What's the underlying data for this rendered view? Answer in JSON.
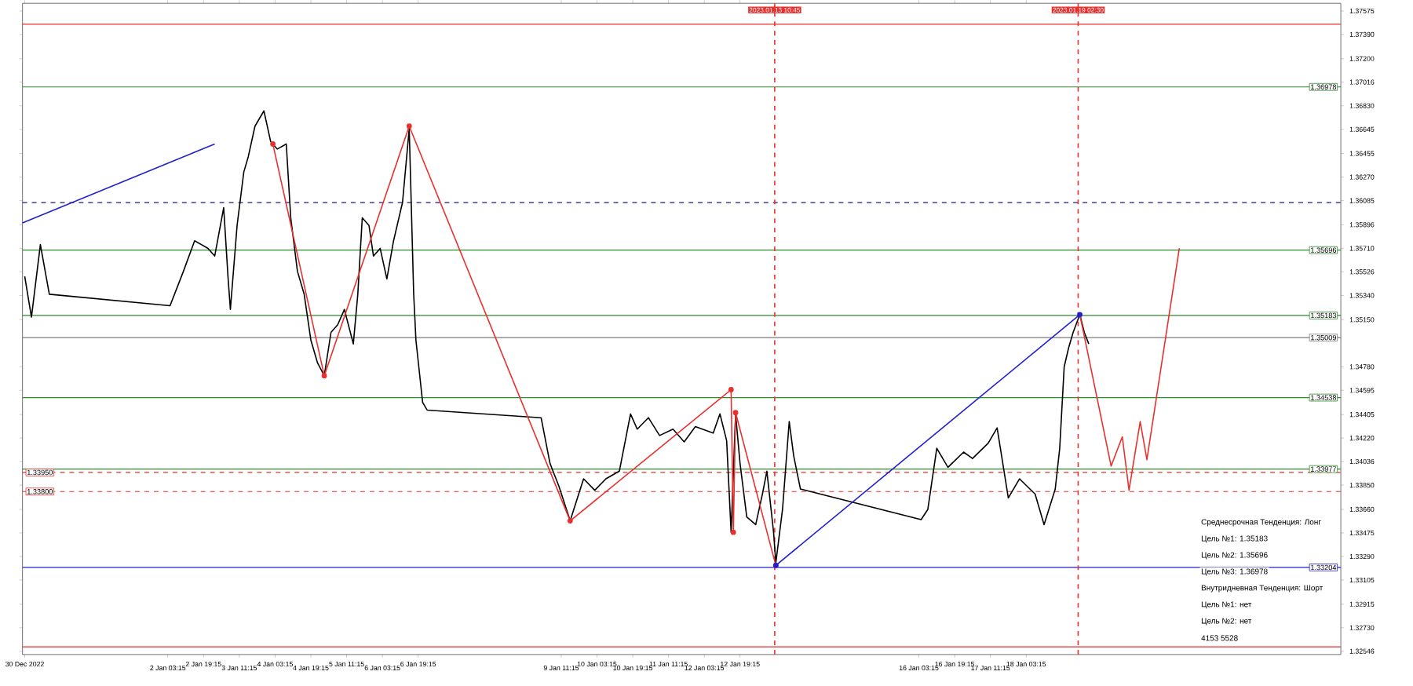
{
  "chart_data": {
    "type": "line",
    "grid": false,
    "marker": "none",
    "line_style": "solid",
    "xlim": [
      "2022-12-30T10:15",
      "2023-01-24T00:00"
    ],
    "ylim": [
      1.3252,
      1.37635
    ],
    "xticks": [
      {
        "value": "2022-12-30T11:15",
        "label": "30 Dec 2022"
      },
      {
        "value": "2023-01-02T03:15",
        "label": "2 Jan 03:15"
      },
      {
        "value": "2023-01-02T19:15",
        "label": "2 Jan 19:15"
      },
      {
        "value": "2023-01-03T11:15",
        "label": "3 Jan 11:15"
      },
      {
        "value": "2023-01-04T03:15",
        "label": "4 Jan 03:15"
      },
      {
        "value": "2023-01-04T19:15",
        "label": "4 Jan 19:15"
      },
      {
        "value": "2023-01-05T11:15",
        "label": "5 Jan 11:15"
      },
      {
        "value": "2023-01-06T03:15",
        "label": "6 Jan 03:15"
      },
      {
        "value": "2023-01-06T19:15",
        "label": "6 Jan 19:15"
      },
      {
        "value": "2023-01-09T11:15",
        "label": "9 Jan 11:15"
      },
      {
        "value": "2023-01-10T03:15",
        "label": "10 Jan 03:15"
      },
      {
        "value": "2023-01-10T19:15",
        "label": "10 Jan 19:15"
      },
      {
        "value": "2023-01-11T11:15",
        "label": "11 Jan 11:15"
      },
      {
        "value": "2023-01-12T03:15",
        "label": "12 Jan 03:15"
      },
      {
        "value": "2023-01-12T19:15",
        "label": "12 Jan 19:15"
      },
      {
        "value": "2023-01-16T03:15",
        "label": "16 Jan 03:15"
      },
      {
        "value": "2023-01-16T19:15",
        "label": "16 Jan 19:15"
      },
      {
        "value": "2023-01-17T11:15",
        "label": "17 Jan 11:15"
      },
      {
        "value": "2023-01-18T03:15",
        "label": "18 Jan 03:15"
      }
    ],
    "yticks": [
      {
        "value": 1.37575,
        "label": "1.37575"
      },
      {
        "value": 1.3739,
        "label": "1.37390"
      },
      {
        "value": 1.372,
        "label": "1.37200"
      },
      {
        "value": 1.37016,
        "label": "1.37016"
      },
      {
        "value": 1.3683,
        "label": "1.36830"
      },
      {
        "value": 1.36645,
        "label": "1.36645"
      },
      {
        "value": 1.36455,
        "label": "1.36455"
      },
      {
        "value": 1.3627,
        "label": "1.36270"
      },
      {
        "value": 1.36085,
        "label": "1.36085"
      },
      {
        "value": 1.35896,
        "label": "1.35896"
      },
      {
        "value": 1.3571,
        "label": "1.35710"
      },
      {
        "value": 1.35526,
        "label": "1.35526"
      },
      {
        "value": 1.3534,
        "label": "1.35340"
      },
      {
        "value": 1.3515,
        "label": "1.35150"
      },
      {
        "value": 1.3478,
        "label": "1.34780"
      },
      {
        "value": 1.34595,
        "label": "1.34595"
      },
      {
        "value": 1.34405,
        "label": "1.34405"
      },
      {
        "value": 1.3422,
        "label": "1.34220"
      },
      {
        "value": 1.34036,
        "label": "1.34036"
      },
      {
        "value": 1.3385,
        "label": "1.33850"
      },
      {
        "value": 1.3366,
        "label": "1.33660"
      },
      {
        "value": 1.33475,
        "label": "1.33475"
      },
      {
        "value": 1.3329,
        "label": "1.33290"
      },
      {
        "value": 1.33105,
        "label": "1.33105"
      },
      {
        "value": 1.32915,
        "label": "1.32915"
      },
      {
        "value": 1.3273,
        "label": "1.32730"
      },
      {
        "value": 1.32546,
        "label": "1.32546"
      }
    ],
    "series": [
      {
        "color": "#000000",
        "x": [
          "2022-12-30T11:15",
          "2022-12-30T14:15",
          "2022-12-30T18:15",
          "2022-12-30T22:15",
          "2023-01-02T04:15",
          "2023-01-02T10:15",
          "2023-01-02T15:15",
          "2023-01-02T21:15",
          "2023-01-03T00:15",
          "2023-01-03T04:15",
          "2023-01-03T06:15",
          "2023-01-03T07:15",
          "2023-01-03T10:15",
          "2023-01-03T13:15",
          "2023-01-03T15:15",
          "2023-01-03T18:15",
          "2023-01-03T22:15",
          "2023-01-04T01:15",
          "2023-01-04T04:15",
          "2023-01-04T08:15",
          "2023-01-04T10:15",
          "2023-01-04T13:15",
          "2023-01-04T16:15",
          "2023-01-04T19:15",
          "2023-01-04T22:15",
          "2023-01-05T01:15",
          "2023-01-05T04:15",
          "2023-01-05T07:15",
          "2023-01-05T10:15",
          "2023-01-05T14:15",
          "2023-01-05T16:15",
          "2023-01-05T18:15",
          "2023-01-05T21:15",
          "2023-01-05T23:15",
          "2023-01-06T02:15",
          "2023-01-06T05:15",
          "2023-01-06T08:15",
          "2023-01-06T12:15",
          "2023-01-06T15:15",
          "2023-01-06T17:15",
          "2023-01-06T18:15",
          "2023-01-06T21:15",
          "2023-01-06T23:15",
          "2023-01-09T02:15",
          "2023-01-09T06:15",
          "2023-01-09T10:15",
          "2023-01-09T15:15",
          "2023-01-09T21:15",
          "2023-01-10T02:15",
          "2023-01-10T07:15",
          "2023-01-10T13:15",
          "2023-01-10T18:15",
          "2023-01-10T21:15",
          "2023-01-11T02:15",
          "2023-01-11T07:15",
          "2023-01-11T13:15",
          "2023-01-11T18:15",
          "2023-01-11T23:15",
          "2023-01-12T07:15",
          "2023-01-12T10:15",
          "2023-01-12T13:15",
          "2023-01-12T15:15",
          "2023-01-12T17:15",
          "2023-01-12T19:15",
          "2023-01-12T22:15",
          "2023-01-13T02:15",
          "2023-01-13T05:15",
          "2023-01-13T07:15",
          "2023-01-13T10:15",
          "2023-01-13T11:15",
          "2023-01-13T14:15",
          "2023-01-13T17:15",
          "2023-01-13T19:15",
          "2023-01-13T22:15",
          "2023-01-16T04:15",
          "2023-01-16T07:15",
          "2023-01-16T11:15",
          "2023-01-16T16:15",
          "2023-01-16T23:15",
          "2023-01-17T03:15",
          "2023-01-17T10:15",
          "2023-01-17T14:15",
          "2023-01-17T19:15",
          "2023-01-18T00:15",
          "2023-01-18T07:15",
          "2023-01-18T11:15",
          "2023-01-18T16:15",
          "2023-01-18T18:15",
          "2023-01-18T20:15",
          "2023-01-18T22:15",
          "2023-01-19T00:15",
          "2023-01-19T03:15",
          "2023-01-19T05:15",
          "2023-01-19T07:15"
        ],
        "values": [
          1.3549,
          1.3517,
          1.3574,
          1.3535,
          1.3526,
          1.3553,
          1.3577,
          1.3571,
          1.3565,
          1.3603,
          1.3547,
          1.3523,
          1.3589,
          1.3631,
          1.3643,
          1.3667,
          1.3679,
          1.3655,
          1.3649,
          1.3653,
          1.3595,
          1.3553,
          1.3535,
          1.3499,
          1.3481,
          1.3471,
          1.3505,
          1.3511,
          1.3523,
          1.3496,
          1.3535,
          1.3595,
          1.3589,
          1.3565,
          1.3571,
          1.3547,
          1.3577,
          1.3607,
          1.3665,
          1.3535,
          1.3499,
          1.345,
          1.3444,
          1.3438,
          1.3402,
          1.3384,
          1.3357,
          1.339,
          1.3381,
          1.339,
          1.3396,
          1.3441,
          1.3429,
          1.3438,
          1.3424,
          1.3429,
          1.3419,
          1.3431,
          1.3426,
          1.3441,
          1.342,
          1.3348,
          1.3441,
          1.3402,
          1.336,
          1.3354,
          1.3378,
          1.3396,
          1.3348,
          1.3324,
          1.3366,
          1.3435,
          1.3408,
          1.3382,
          1.3358,
          1.3366,
          1.3414,
          1.3399,
          1.3411,
          1.3406,
          1.3418,
          1.343,
          1.3375,
          1.339,
          1.3378,
          1.3354,
          1.3382,
          1.3414,
          1.3478,
          1.3493,
          1.3505,
          1.3519,
          1.3505,
          1.3496
        ]
      },
      {
        "color": "#e8312f",
        "marker": "circle",
        "x": [
          "2023-01-04T02:15",
          "2023-01-05T01:15",
          "2023-01-06T15:15",
          "2023-01-09T15:15",
          "2023-01-12T15:15",
          "2023-01-12T16:15",
          "2023-01-12T17:15",
          "2023-01-13T11:15"
        ],
        "values": [
          1.3653,
          1.3471,
          1.3667,
          1.3357,
          1.346,
          1.3348,
          1.3442,
          1.3322
        ]
      },
      {
        "color": "#2020d0",
        "marker": "circle",
        "x": [
          "2023-01-13T11:15",
          "2023-01-19T03:15"
        ],
        "values": [
          1.3322,
          1.3519
        ]
      },
      {
        "color": "#2020d0",
        "x": [
          "2022-12-30T10:15",
          "2023-01-03T00:15"
        ],
        "values": [
          1.3591,
          1.3653
        ]
      },
      {
        "color": "#e8312f",
        "x": [
          "2023-01-19T03:15",
          "2023-01-19T17:15",
          "2023-01-19T22:15",
          "2023-01-20T01:15",
          "2023-01-20T06:15",
          "2023-01-20T09:15",
          "2023-01-20T23:45"
        ],
        "values": [
          1.3519,
          1.34,
          1.3423,
          1.3381,
          1.3435,
          1.3405,
          1.3571
        ]
      }
    ],
    "ref_lines": [
      {
        "axis": "y",
        "value": 1.3747,
        "color": "#e8312f"
      },
      {
        "axis": "y",
        "value": 1.3607,
        "color": "#1a1a8c",
        "line_style": "dashed"
      },
      {
        "axis": "y",
        "value": 1.3258,
        "color": "#e8312f"
      },
      {
        "axis": "y",
        "value": 1.35009,
        "color": "#7a7a7a",
        "label": "1.35009"
      },
      {
        "axis": "y",
        "value": 1.36978,
        "color": "#2e8b2e",
        "label": "1.36978"
      },
      {
        "axis": "y",
        "value": 1.35696,
        "color": "#2e8b2e",
        "label": "1.35696"
      },
      {
        "axis": "y",
        "value": 1.35183,
        "color": "#2e8b2e",
        "label": "1.35183"
      },
      {
        "axis": "y",
        "value": 1.34538,
        "color": "#2e8b2e",
        "label": "1.34538"
      },
      {
        "axis": "y",
        "value": 1.33977,
        "color": "#2e8b2e",
        "label": "1.33977"
      },
      {
        "axis": "y",
        "value": 1.33204,
        "color": "#2020d0",
        "label": "1.33204"
      },
      {
        "axis": "y",
        "value": 1.3395,
        "color": "#e8312f",
        "line_style": "dashed",
        "label": "1.33950"
      },
      {
        "axis": "y",
        "value": 1.338,
        "color": "#e8312f",
        "line_style": "dashed",
        "label": "1.33800"
      },
      {
        "axis": "x",
        "value": "2023-01-13T10:45",
        "color": "#e8312f",
        "line_style": "dashed",
        "label": "2023.01.13 10:45"
      },
      {
        "axis": "x",
        "value": "2023-01-19T02:30",
        "color": "#e8312f",
        "line_style": "dashed",
        "label": "2023.01.19 02:30"
      }
    ],
    "annotations": [
      "Среднесрочная Тенденция: Лонг",
      "Цель №1: 1.35183",
      "Цель №2: 1.35696",
      "Цель №3: 1.36978",
      "Внутридневная Тенденция: Шорт",
      "Цель №1: нет",
      "Цель №2: нет",
      "4153 5528"
    ]
  }
}
